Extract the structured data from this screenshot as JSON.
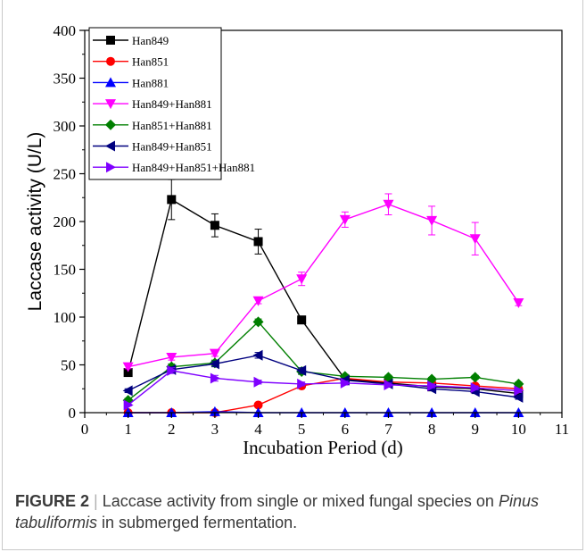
{
  "chart_data": {
    "type": "line",
    "xlabel": "Incubation Period (d)",
    "ylabel": "Laccase activity (U/L)",
    "xlim": [
      0,
      11
    ],
    "ylim": [
      0,
      400
    ],
    "xticks": [
      0,
      1,
      2,
      3,
      4,
      5,
      6,
      7,
      8,
      9,
      10,
      11
    ],
    "yticks": [
      0,
      50,
      100,
      150,
      200,
      250,
      300,
      350,
      400
    ],
    "grid": false,
    "legend_position": "top-left",
    "x": [
      1,
      2,
      3,
      4,
      5,
      6,
      7,
      8,
      9,
      10
    ],
    "series": [
      {
        "name": "Han849",
        "color": "#000000",
        "marker": "square",
        "values": [
          42,
          223,
          196,
          179,
          97,
          35,
          31,
          27,
          25,
          20
        ],
        "errors": [
          3,
          21,
          12,
          13,
          4,
          2,
          2,
          2,
          2,
          2
        ]
      },
      {
        "name": "Han851",
        "color": "#ff0000",
        "marker": "circle",
        "values": [
          0,
          0,
          0,
          8,
          28,
          36,
          32,
          31,
          28,
          25
        ],
        "errors": [
          0,
          0,
          0,
          1,
          2,
          2,
          2,
          2,
          2,
          2
        ]
      },
      {
        "name": "Han881",
        "color": "#0000ff",
        "marker": "triangle-up",
        "values": [
          0,
          0,
          1,
          0,
          0,
          0,
          0,
          0,
          0,
          0
        ],
        "errors": [
          0,
          0,
          0,
          0,
          0,
          0,
          0,
          0,
          0,
          0
        ]
      },
      {
        "name": "Han849+Han881",
        "color": "#ff00ff",
        "marker": "triangle-down",
        "values": [
          48,
          58,
          62,
          117,
          140,
          202,
          218,
          201,
          182,
          115
        ],
        "errors": [
          2,
          3,
          3,
          3,
          7,
          8,
          11,
          15,
          17,
          3
        ]
      },
      {
        "name": "Han851+Han881",
        "color": "#007f00",
        "marker": "diamond",
        "values": [
          13,
          48,
          52,
          95,
          43,
          38,
          37,
          35,
          37,
          30
        ],
        "errors": [
          2,
          3,
          3,
          3,
          3,
          2,
          2,
          2,
          2,
          2
        ]
      },
      {
        "name": "Han849+Han851",
        "color": "#00007f",
        "marker": "triangle-left",
        "values": [
          23,
          45,
          51,
          60,
          44,
          34,
          30,
          25,
          22,
          16
        ],
        "errors": [
          2,
          3,
          3,
          3,
          3,
          2,
          2,
          2,
          2,
          2
        ]
      },
      {
        "name": "Han849+Han851+Han881",
        "color": "#7f00ff",
        "marker": "triangle-right",
        "values": [
          8,
          44,
          36,
          32,
          30,
          31,
          29,
          28,
          26,
          23
        ],
        "errors": [
          1,
          3,
          3,
          2,
          2,
          2,
          2,
          2,
          2,
          2
        ]
      }
    ]
  },
  "caption": {
    "label": "FIGURE 2",
    "separator": "|",
    "text_before": " Laccase activity from single or mixed fungal species on ",
    "species": "Pinus tabuliformis",
    "text_after": " in submerged fermentation."
  }
}
